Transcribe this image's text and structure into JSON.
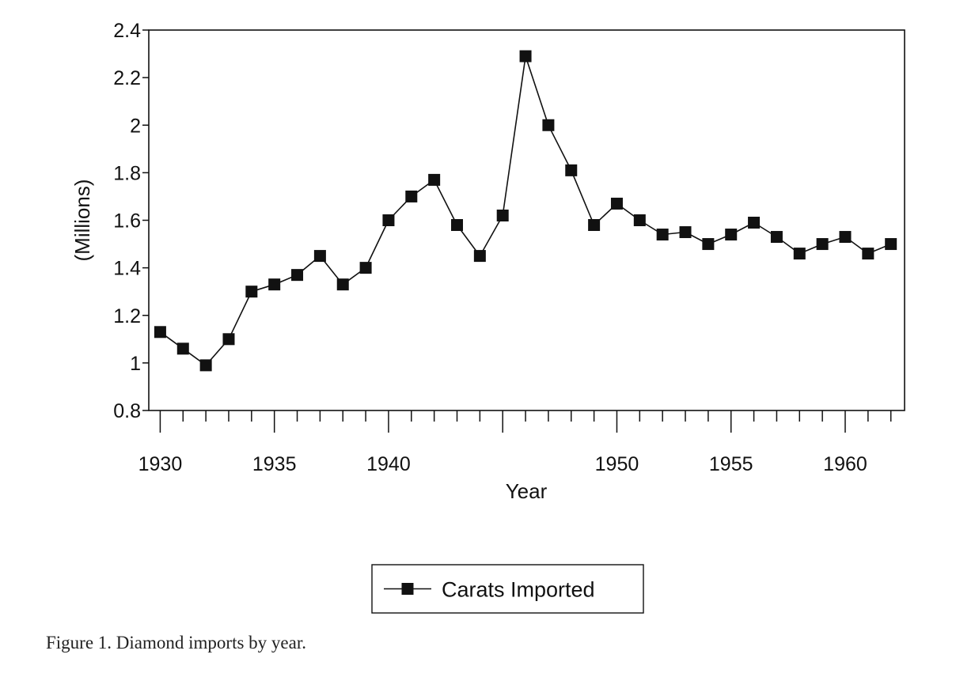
{
  "caption": "Figure 1.  Diamond imports by year.",
  "chart_data": {
    "type": "line",
    "title": "",
    "xlabel": "Year",
    "ylabel": "(Millions)",
    "xlim": [
      1929.5,
      1962.6
    ],
    "ylim": [
      0.8,
      2.4
    ],
    "x_ticks": [
      1930,
      1935,
      1940,
      1950,
      1955,
      1960
    ],
    "x_tick_labels": [
      "1930",
      "1935",
      "1940",
      "1950",
      "1955",
      "1960"
    ],
    "y_ticks": [
      0.8,
      1,
      1.2,
      1.4,
      1.6,
      1.8,
      2,
      2.2,
      2.4
    ],
    "y_tick_labels": [
      "0.8",
      "1",
      "1.2",
      "1.4",
      "1.6",
      "1.8",
      "2",
      "2.2",
      "2.4"
    ],
    "grid": false,
    "legend_position": "bottom-center",
    "series": [
      {
        "name": "Carats Imported",
        "marker": "square",
        "color": "#111111",
        "x": [
          1930,
          1931,
          1932,
          1933,
          1934,
          1935,
          1936,
          1937,
          1938,
          1939,
          1940,
          1941,
          1942,
          1943,
          1944,
          1945,
          1946,
          1947,
          1948,
          1949,
          1950,
          1951,
          1952,
          1953,
          1954,
          1955,
          1956,
          1957,
          1958,
          1959,
          1960,
          1961,
          1962
        ],
        "values": [
          1.13,
          1.06,
          0.99,
          1.1,
          1.3,
          1.33,
          1.37,
          1.45,
          1.33,
          1.4,
          1.6,
          1.7,
          1.77,
          1.58,
          1.45,
          1.62,
          2.29,
          2.0,
          1.81,
          1.58,
          1.67,
          1.6,
          1.54,
          1.55,
          1.5,
          1.54,
          1.59,
          1.53,
          1.46,
          1.5,
          1.53,
          1.46,
          1.5
        ]
      }
    ]
  }
}
